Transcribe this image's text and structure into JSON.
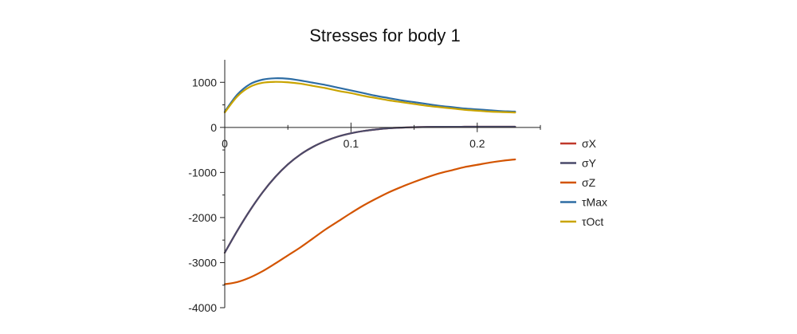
{
  "chart_data": {
    "type": "line",
    "title": "Stresses for body 1",
    "xlabel": "",
    "ylabel": "",
    "xlim": [
      0,
      0.25
    ],
    "ylim": [
      -4000,
      1500
    ],
    "grid": false,
    "legend_position": "right",
    "x_ticks": [
      "0",
      "0.1",
      "0.2"
    ],
    "y_ticks": [
      "1000",
      "0",
      "-1000",
      "-2000",
      "-3000",
      "-4000"
    ],
    "x": [
      0,
      0.01,
      0.02,
      0.03,
      0.04,
      0.05,
      0.06,
      0.07,
      0.08,
      0.09,
      0.1,
      0.11,
      0.12,
      0.13,
      0.14,
      0.15,
      0.16,
      0.17,
      0.18,
      0.19,
      0.2,
      0.21,
      0.22,
      0.23
    ],
    "series": [
      {
        "name": "σX",
        "color": "#c0392b",
        "values": [
          -2780,
          -2290,
          -1840,
          -1440,
          -1100,
          -820,
          -600,
          -430,
          -300,
          -200,
          -130,
          -80,
          -45,
          -20,
          -5,
          5,
          10,
          12,
          13,
          14,
          14,
          15,
          15,
          15
        ]
      },
      {
        "name": "σY",
        "color": "#4a4a6a",
        "values": [
          -2780,
          -2290,
          -1840,
          -1440,
          -1100,
          -820,
          -600,
          -430,
          -300,
          -200,
          -130,
          -80,
          -45,
          -20,
          -5,
          5,
          10,
          12,
          13,
          14,
          14,
          15,
          15,
          15
        ]
      },
      {
        "name": "σZ",
        "color": "#d35400",
        "values": [
          -3480,
          -3430,
          -3330,
          -3190,
          -3020,
          -2840,
          -2660,
          -2460,
          -2260,
          -2080,
          -1900,
          -1730,
          -1580,
          -1440,
          -1320,
          -1210,
          -1110,
          -1020,
          -950,
          -880,
          -830,
          -780,
          -740,
          -710
        ]
      },
      {
        "name": "τMax",
        "color": "#2e6da4",
        "values": [
          350,
          730,
          960,
          1060,
          1090,
          1080,
          1040,
          990,
          940,
          880,
          820,
          760,
          700,
          650,
          600,
          560,
          520,
          480,
          450,
          420,
          400,
          380,
          360,
          350
        ]
      },
      {
        "name": "τOct",
        "color": "#c9a400",
        "values": [
          330,
          690,
          900,
          990,
          1010,
          1000,
          970,
          920,
          870,
          810,
          760,
          700,
          650,
          600,
          560,
          520,
          480,
          450,
          420,
          390,
          370,
          350,
          340,
          330
        ]
      }
    ]
  }
}
